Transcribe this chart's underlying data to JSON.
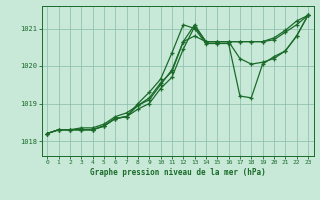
{
  "title": "Graphe pression niveau de la mer (hPa)",
  "background_color": "#c8e8d8",
  "grid_color": "#88bbaa",
  "line_color": "#1a6b2a",
  "xlim": [
    -0.5,
    23.5
  ],
  "ylim": [
    1017.6,
    1021.6
  ],
  "yticks": [
    1018,
    1019,
    1020,
    1021
  ],
  "xticks": [
    0,
    1,
    2,
    3,
    4,
    5,
    6,
    7,
    8,
    9,
    10,
    11,
    12,
    13,
    14,
    15,
    16,
    17,
    18,
    19,
    20,
    21,
    22,
    23
  ],
  "series": [
    [
      1018.2,
      1018.3,
      1018.3,
      1018.35,
      1018.35,
      1018.45,
      1018.65,
      1018.75,
      1018.95,
      1019.15,
      1019.55,
      1019.85,
      1020.65,
      1020.8,
      1020.65,
      1020.65,
      1020.65,
      1020.65,
      1020.65,
      1020.65,
      1020.75,
      1020.95,
      1021.2,
      1021.35
    ],
    [
      1018.2,
      1018.3,
      1018.3,
      1018.3,
      1018.3,
      1018.4,
      1018.6,
      1018.65,
      1018.85,
      1019.0,
      1019.4,
      1019.7,
      1020.45,
      1021.05,
      1020.65,
      1020.65,
      1020.65,
      1020.65,
      1020.65,
      1020.65,
      1020.7,
      1020.9,
      1021.1,
      1021.35
    ],
    [
      1018.2,
      1018.3,
      1018.3,
      1018.3,
      1018.3,
      1018.4,
      1018.6,
      1018.65,
      1018.95,
      1019.1,
      1019.5,
      1019.9,
      1020.65,
      1021.1,
      1020.65,
      1020.65,
      1020.65,
      1020.2,
      1020.05,
      1020.1,
      1020.2,
      1020.4,
      1020.8,
      1021.35
    ],
    [
      1018.2,
      1018.3,
      1018.3,
      1018.3,
      1018.3,
      1018.4,
      1018.6,
      1018.65,
      1019.0,
      1019.3,
      1019.65,
      1020.35,
      1021.1,
      1021.0,
      1020.6,
      1020.6,
      1020.6,
      1019.2,
      1019.15,
      1020.05,
      1020.25,
      1020.4,
      1020.8,
      1021.35
    ]
  ]
}
